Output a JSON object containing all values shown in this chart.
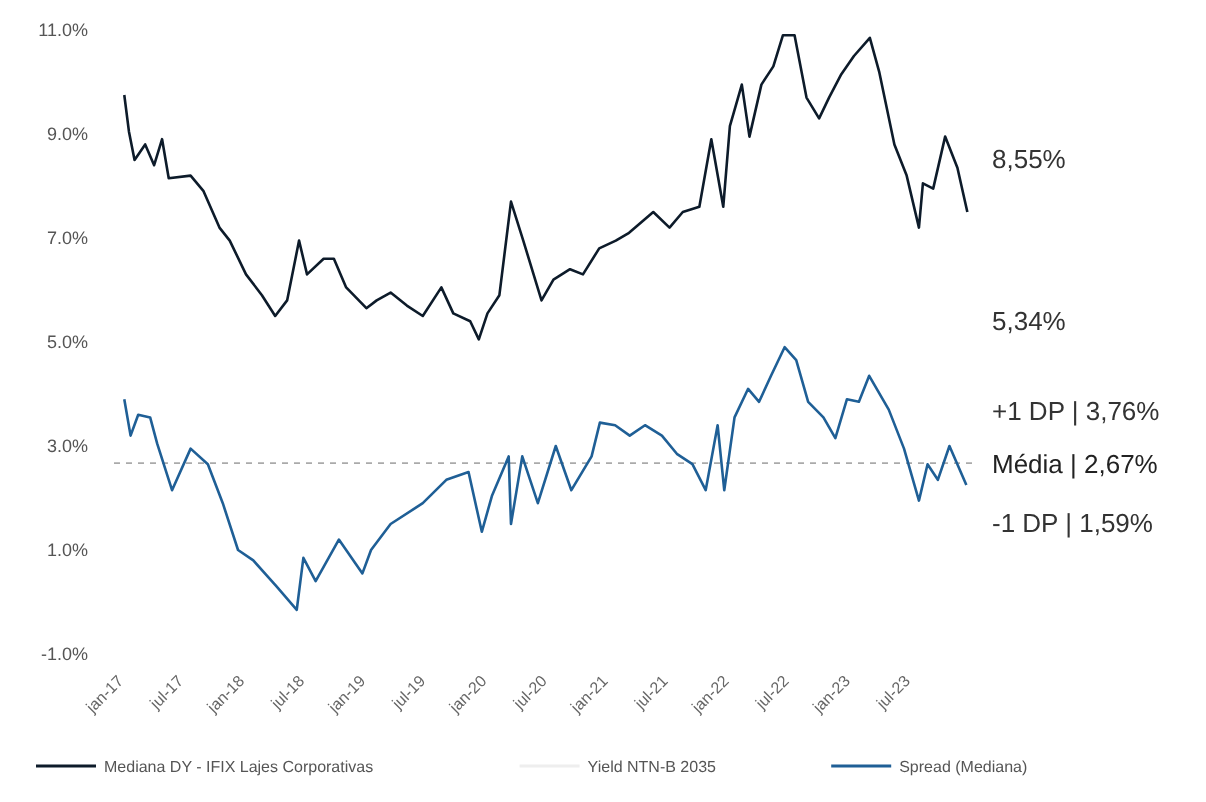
{
  "chart_data": {
    "type": "line",
    "xlim": [
      "2016-12-01",
      "2024-01-01"
    ],
    "xticks": [
      {
        "value": "2017-01-01",
        "label": "jan-17"
      },
      {
        "value": "2017-07-01",
        "label": "jul-17"
      },
      {
        "value": "2018-01-01",
        "label": "jan-18"
      },
      {
        "value": "2018-07-01",
        "label": "jul-18"
      },
      {
        "value": "2019-01-01",
        "label": "jan-19"
      },
      {
        "value": "2019-07-01",
        "label": "jul-19"
      },
      {
        "value": "2020-01-01",
        "label": "jan-20"
      },
      {
        "value": "2020-07-01",
        "label": "jul-20"
      },
      {
        "value": "2021-01-01",
        "label": "jan-21"
      },
      {
        "value": "2021-07-01",
        "label": "jul-21"
      },
      {
        "value": "2022-01-01",
        "label": "jan-22"
      },
      {
        "value": "2022-07-01",
        "label": "jul-22"
      },
      {
        "value": "2023-01-01",
        "label": "jan-23"
      },
      {
        "value": "2023-07-01",
        "label": "jul-23"
      }
    ],
    "ylim": [
      -1,
      11
    ],
    "yticks": [
      {
        "value": -1,
        "label": "-1.0%"
      },
      {
        "value": 1,
        "label": "1.0%"
      },
      {
        "value": 3,
        "label": "3.0%"
      },
      {
        "value": 5,
        "label": "5.0%"
      },
      {
        "value": 7,
        "label": "7.0%"
      },
      {
        "value": 9,
        "label": "9.0%"
      },
      {
        "value": 11,
        "label": "11.0%"
      }
    ],
    "grid": false,
    "legend": "bottom",
    "line_style": "solid",
    "marker": "none",
    "series": [
      {
        "name": "Mediana DY - IFIX Lajes Corporativas",
        "color": "#0d1b2a",
        "x": [
          "2017-01-01",
          "2017-01-15",
          "2017-02-01",
          "2017-03-05",
          "2017-04-01",
          "2017-04-25",
          "2017-05-15",
          "2017-07-20",
          "2017-08-28",
          "2017-10-15",
          "2017-11-15",
          "2018-01-03",
          "2018-02-20",
          "2018-04-01",
          "2018-05-07",
          "2018-06-12",
          "2018-07-06",
          "2018-08-25",
          "2018-09-25",
          "2018-11-01",
          "2019-01-01",
          "2019-02-01",
          "2019-03-15",
          "2019-05-03",
          "2019-06-20",
          "2019-08-15",
          "2019-09-20",
          "2019-11-10",
          "2019-12-06",
          "2020-01-01",
          "2020-02-06",
          "2020-03-12",
          "2020-04-18",
          "2020-06-12",
          "2020-07-18",
          "2020-09-06",
          "2020-10-15",
          "2020-12-03",
          "2021-01-22",
          "2021-03-03",
          "2021-05-15",
          "2021-07-03",
          "2021-08-12",
          "2021-10-01",
          "2021-11-06",
          "2021-12-12",
          "2022-01-01",
          "2022-02-06",
          "2022-03-01",
          "2022-04-06",
          "2022-05-12",
          "2022-06-10",
          "2022-07-15",
          "2022-08-20",
          "2022-09-27",
          "2022-10-27",
          "2022-12-03",
          "2023-01-10",
          "2023-02-27",
          "2023-03-27",
          "2023-05-12",
          "2023-06-18",
          "2023-07-25",
          "2023-08-06",
          "2023-09-06",
          "2023-10-12",
          "2023-11-18",
          "2023-12-18"
        ],
        "values": [
          9.75,
          9.05,
          8.5,
          8.8,
          8.4,
          8.9,
          8.15,
          8.2,
          7.9,
          7.2,
          6.95,
          6.3,
          5.9,
          5.5,
          5.8,
          6.95,
          6.3,
          6.6,
          6.6,
          6.05,
          5.65,
          5.8,
          5.95,
          5.7,
          5.5,
          6.05,
          5.55,
          5.4,
          5.05,
          5.55,
          5.9,
          7.7,
          6.95,
          5.8,
          6.2,
          6.4,
          6.3,
          6.8,
          6.95,
          7.1,
          7.5,
          7.2,
          7.5,
          7.6,
          8.9,
          7.6,
          9.15,
          9.95,
          8.95,
          9.95,
          10.3,
          10.9,
          10.9,
          9.7,
          9.3,
          9.7,
          10.15,
          10.5,
          10.85,
          10.2,
          8.8,
          8.2,
          7.2,
          8.05,
          7.95,
          8.95,
          8.35,
          7.5
        ]
      },
      {
        "name": "Yield NTN-B 2035",
        "color": "#eeeeee"
      },
      {
        "name": "Spread (Mediana)",
        "color": "#1f5f96",
        "x": [
          "2017-01-01",
          "2017-01-20",
          "2017-02-12",
          "2017-03-20",
          "2017-04-10",
          "2017-05-25",
          "2017-07-20",
          "2017-09-10",
          "2017-10-25",
          "2017-12-10",
          "2018-01-25",
          "2018-04-05",
          "2018-06-05",
          "2018-06-25",
          "2018-08-01",
          "2018-10-10",
          "2018-12-20",
          "2019-01-15",
          "2019-03-15",
          "2019-06-20",
          "2019-08-30",
          "2019-11-05",
          "2019-12-15",
          "2020-01-15",
          "2020-03-05",
          "2020-03-12",
          "2020-04-15",
          "2020-06-01",
          "2020-07-25",
          "2020-09-10",
          "2020-11-10",
          "2020-12-05",
          "2021-01-20",
          "2021-03-05",
          "2021-04-20",
          "2021-06-10",
          "2021-07-25",
          "2021-09-10",
          "2021-10-20",
          "2021-11-25",
          "2021-12-15",
          "2022-01-15",
          "2022-02-25",
          "2022-03-30",
          "2022-05-05",
          "2022-06-15",
          "2022-07-20",
          "2022-08-25",
          "2022-10-10",
          "2022-11-15",
          "2022-12-20",
          "2023-01-25",
          "2023-02-25",
          "2023-04-25",
          "2023-06-10",
          "2023-07-25",
          "2023-08-20",
          "2023-09-20",
          "2023-10-25",
          "2023-12-15"
        ],
        "values": [
          3.9,
          3.2,
          3.6,
          3.55,
          3.05,
          2.15,
          2.95,
          2.65,
          1.9,
          1.0,
          0.8,
          0.3,
          -0.15,
          0.85,
          0.4,
          1.2,
          0.55,
          1.0,
          1.5,
          1.9,
          2.35,
          2.5,
          1.35,
          2.05,
          2.8,
          1.5,
          2.8,
          1.9,
          3.0,
          2.15,
          2.8,
          3.45,
          3.4,
          3.2,
          3.4,
          3.2,
          2.85,
          2.65,
          2.15,
          3.4,
          2.15,
          3.55,
          4.1,
          3.85,
          4.35,
          4.9,
          4.65,
          3.85,
          3.55,
          3.15,
          3.9,
          3.85,
          4.35,
          3.7,
          2.95,
          1.95,
          2.65,
          2.35,
          3.0,
          2.25
        ]
      }
    ],
    "ref_lines": [
      {
        "axis": "y",
        "value": 2.67,
        "label": "Média | 2,67%",
        "color": "#aaaaaa",
        "line_style": "dashed"
      }
    ],
    "annotations": [
      "8,55%",
      "5,34%",
      "+1 DP | 3,76%",
      "-1 DP | 1,59%"
    ]
  }
}
